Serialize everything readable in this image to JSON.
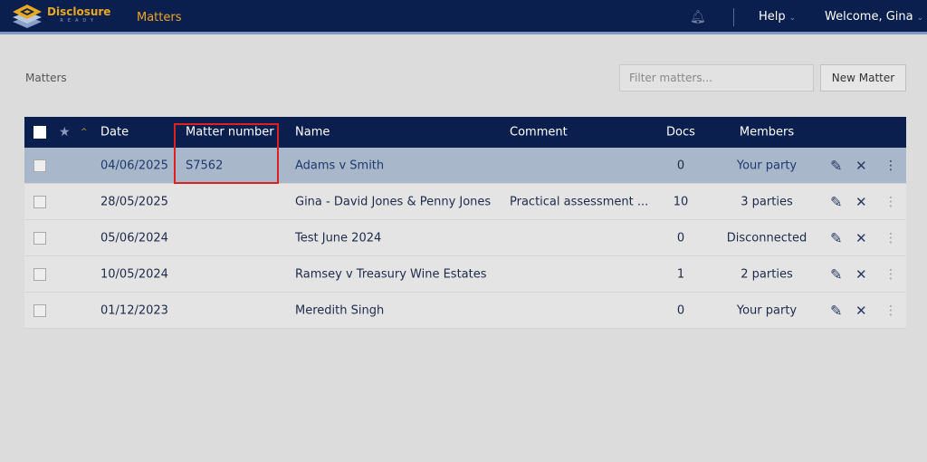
{
  "nav": {
    "brand": "Disclosure",
    "brand_sub": "READY",
    "link": "Matters",
    "help": "Help",
    "welcome": "Welcome, Gina"
  },
  "page": {
    "breadcrumb": "Matters",
    "filter_placeholder": "Filter matters...",
    "new_matter": "New Matter"
  },
  "table": {
    "headers": {
      "date": "Date",
      "number": "Matter number",
      "name": "Name",
      "comment": "Comment",
      "docs": "Docs",
      "members": "Members"
    },
    "rows": [
      {
        "date": "04/06/2025",
        "number": "S7562",
        "name": "Adams v Smith",
        "comment": "",
        "docs": "0",
        "members": "Your party",
        "selected": true
      },
      {
        "date": "28/05/2025",
        "number": "",
        "name": "Gina - David Jones & Penny Jones",
        "comment": "Practical assessment ...",
        "docs": "10",
        "members": "3 parties"
      },
      {
        "date": "05/06/2024",
        "number": "",
        "name": "Test June 2024",
        "comment": "",
        "docs": "0",
        "members": "Disconnected"
      },
      {
        "date": "10/05/2024",
        "number": "",
        "name": "Ramsey v Treasury Wine Estates",
        "comment": "",
        "docs": "1",
        "members": "2 parties"
      },
      {
        "date": "01/12/2023",
        "number": "",
        "name": "Meredith Singh",
        "comment": "",
        "docs": "0",
        "members": "Your party"
      }
    ]
  },
  "colors": {
    "nav": "#0b1f4f",
    "accent": "#e8a820",
    "selected_row": "#a8b7ca",
    "highlight": "#e02020"
  }
}
